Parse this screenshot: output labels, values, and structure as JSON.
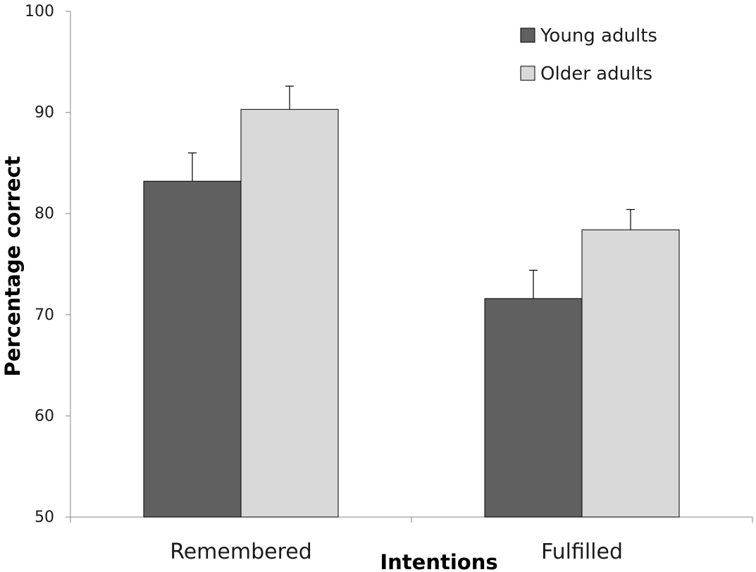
{
  "chart_data": {
    "type": "bar",
    "categories": [
      "Remembered",
      "Fulfilled"
    ],
    "series": [
      {
        "name": "Young adults",
        "values": [
          83.2,
          71.6
        ],
        "errors": [
          2.8,
          2.8
        ],
        "color": "#606060"
      },
      {
        "name": "Older adults",
        "values": [
          90.3,
          78.4
        ],
        "errors": [
          2.3,
          2.0
        ],
        "color": "#d9d9d9"
      }
    ],
    "xlabel": "Intentions",
    "ylabel": "Percentage correct",
    "ylim": [
      50,
      100
    ],
    "yticks": [
      "50",
      "60",
      "70",
      "80",
      "90",
      "100"
    ],
    "grid": false,
    "legend_position": "top-right",
    "error_bars": "upper"
  }
}
